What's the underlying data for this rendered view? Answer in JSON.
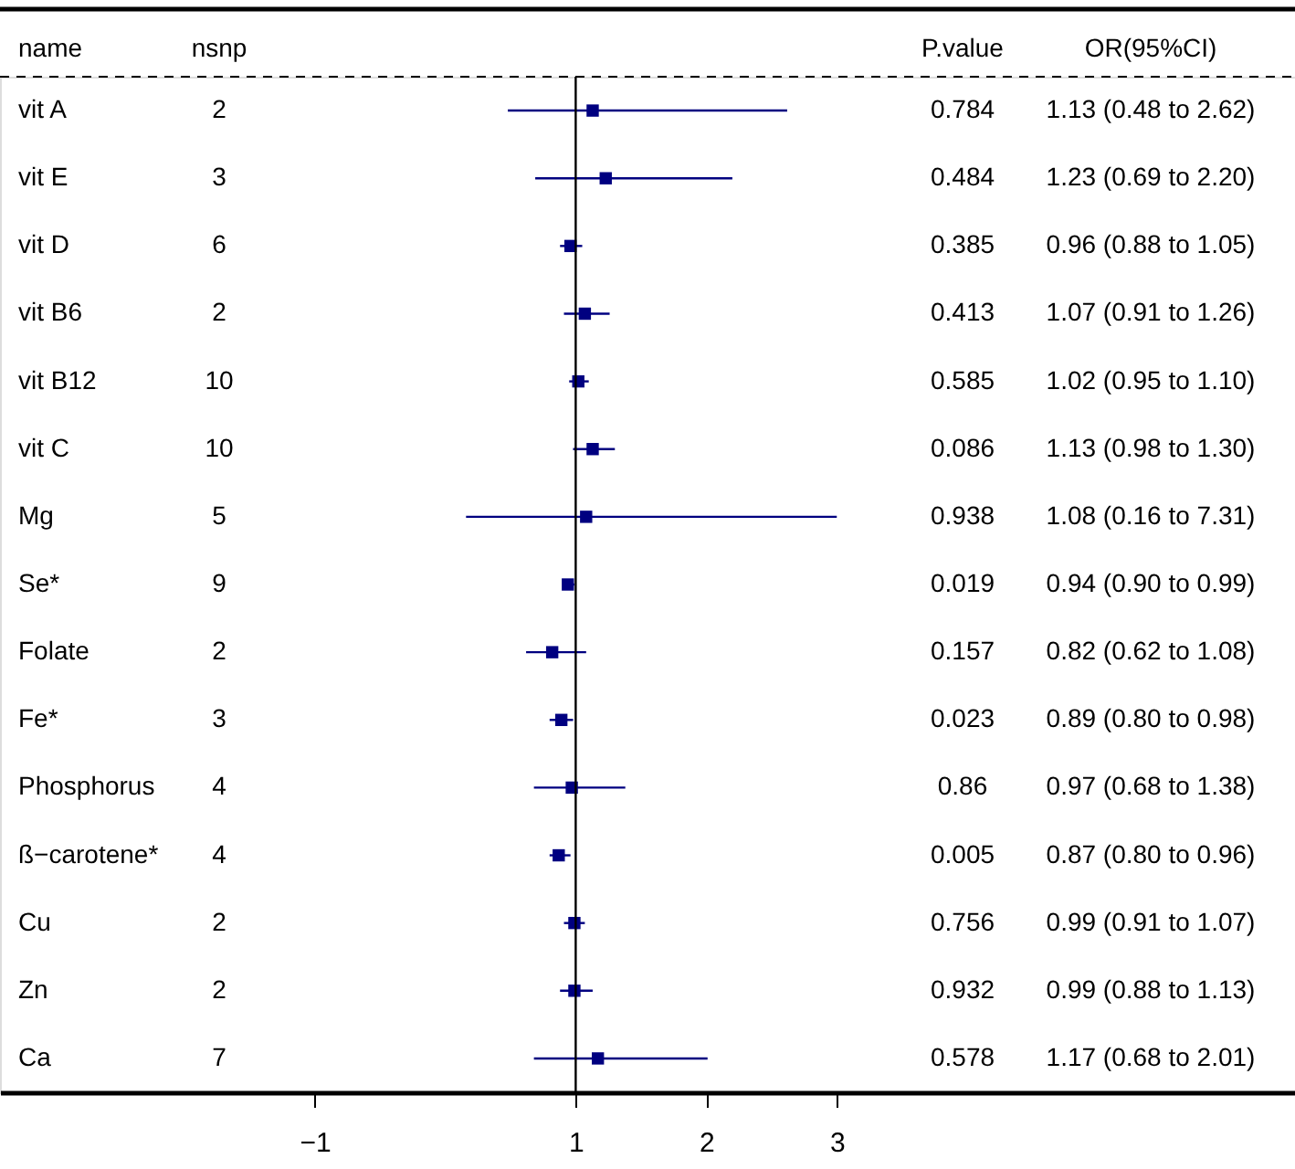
{
  "chart_data": {
    "type": "scatter",
    "orientation": "horizontal",
    "categories": [
      "vit A",
      "vit E",
      "vit D",
      "vit B6",
      "vit B12",
      "vit C",
      "Mg",
      "Se*",
      "Folate",
      "Fe*",
      "Phosphorus",
      "ß−carotene*",
      "Cu",
      "Zn",
      "Ca"
    ],
    "values": [
      1.13,
      1.23,
      0.96,
      1.07,
      1.02,
      1.13,
      1.08,
      0.94,
      0.82,
      0.89,
      0.97,
      0.87,
      0.99,
      0.99,
      1.17
    ],
    "errors": [
      [
        0.48,
        2.62
      ],
      [
        0.69,
        2.2
      ],
      [
        0.88,
        1.05
      ],
      [
        0.91,
        1.26
      ],
      [
        0.95,
        1.1
      ],
      [
        0.98,
        1.3
      ],
      [
        0.16,
        3
      ],
      [
        0.9,
        0.99
      ],
      [
        0.62,
        1.08
      ],
      [
        0.8,
        0.98
      ],
      [
        0.68,
        1.38
      ],
      [
        0.8,
        0.96
      ],
      [
        0.91,
        1.07
      ],
      [
        0.88,
        1.13
      ],
      [
        0.68,
        2.01
      ]
    ],
    "color": "#000080",
    "marker": "square",
    "xlim": [
      -3.41,
      6.51
    ],
    "xticks": [
      -1,
      1,
      2,
      3
    ],
    "tick_labels": "x",
    "grid": false,
    "ref_lines": [
      {
        "axis": "x",
        "value": 1,
        "color": "#000000"
      }
    ],
    "annotations": [
      "name",
      "nsnp",
      "P.value",
      "OR(95%CI)",
      "2",
      "3",
      "6",
      "2",
      "10",
      "10",
      "5",
      "9",
      "2",
      "3",
      "4",
      "4",
      "2",
      "2",
      "7",
      "0.784",
      "0.484",
      "0.385",
      "0.413",
      "0.585",
      "0.086",
      "0.938",
      "0.019",
      "0.157",
      "0.023",
      "0.86",
      "0.005",
      "0.756",
      "0.932",
      "0.578",
      "1.13 (0.48 to 2.62)",
      "1.23 (0.69 to 2.20)",
      "0.96 (0.88 to 1.05)",
      "1.07 (0.91 to 1.26)",
      "1.02 (0.95 to 1.10)",
      "1.13 (0.98 to 1.30)",
      "1.08 (0.16 to 7.31)",
      "0.94 (0.90 to 0.99)",
      "0.82 (0.62 to 1.08)",
      "0.89 (0.80 to 0.98)",
      "0.97 (0.68 to 1.38)",
      "0.87 (0.80 to 0.96)",
      "0.99 (0.91 to 1.07)",
      "0.99 (0.88 to 1.13)",
      "1.17 (0.68 to 2.01)"
    ]
  }
}
